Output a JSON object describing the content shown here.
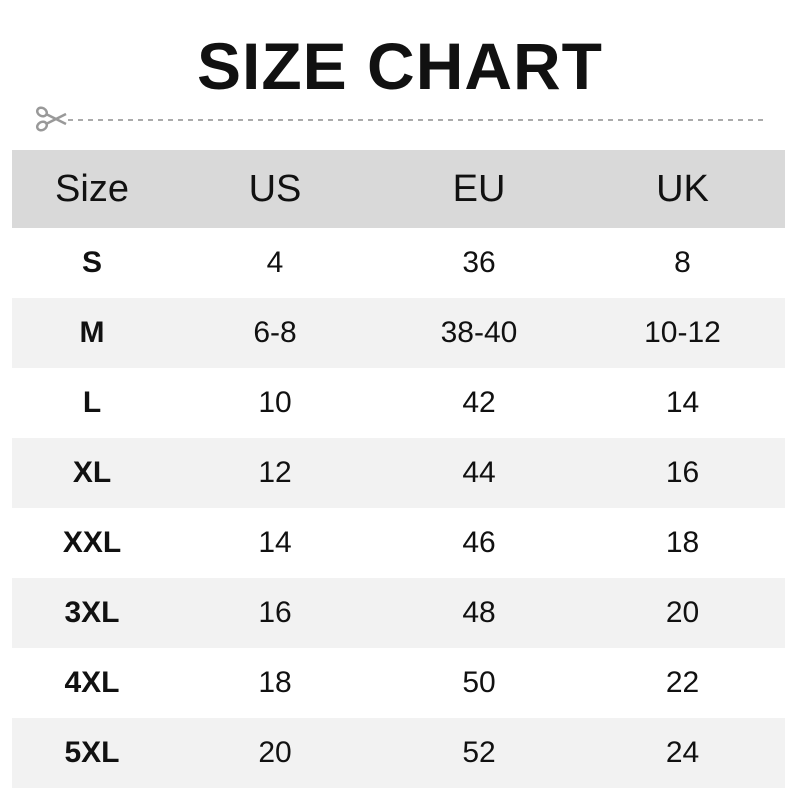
{
  "title": "SIZE CHART",
  "icons": {
    "cut_line": "scissors-icon"
  },
  "colors": {
    "header_bg": "#d9d9d9",
    "alt_row_bg": "#f2f2f2",
    "dash": "#aaaaaa"
  },
  "table": {
    "headers": [
      "Size",
      "US",
      "EU",
      "UK"
    ],
    "rows": [
      [
        "S",
        "4",
        "36",
        "8"
      ],
      [
        "M",
        "6-8",
        "38-40",
        "10-12"
      ],
      [
        "L",
        "10",
        "42",
        "14"
      ],
      [
        "XL",
        "12",
        "44",
        "16"
      ],
      [
        "XXL",
        "14",
        "46",
        "18"
      ],
      [
        "3XL",
        "16",
        "48",
        "20"
      ],
      [
        "4XL",
        "18",
        "50",
        "22"
      ],
      [
        "5XL",
        "20",
        "52",
        "24"
      ]
    ]
  }
}
